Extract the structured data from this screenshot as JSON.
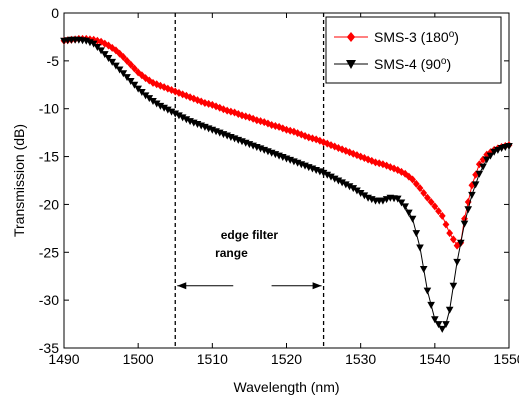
{
  "chart_data": {
    "type": "line",
    "title": "",
    "xlabel": "Wavelength (nm)",
    "ylabel": "Transmission (dB)",
    "xlim": [
      1490,
      1550
    ],
    "ylim": [
      -35,
      0
    ],
    "xticks": [
      1490,
      1500,
      1510,
      1520,
      1530,
      1540,
      1550
    ],
    "yticks": [
      0,
      -5,
      -10,
      -15,
      -20,
      -25,
      -30,
      -35
    ],
    "grid": false,
    "legend_position": "top-right",
    "series": [
      {
        "name": "SMS-3 (180",
        "name_superscript": "o",
        "name_suffix": ")",
        "color": "#ff0000",
        "marker": "diamond",
        "x": [
          1490,
          1491,
          1492,
          1493,
          1494,
          1495,
          1496,
          1497,
          1498,
          1499,
          1500,
          1501,
          1502,
          1503,
          1504,
          1505,
          1506,
          1507,
          1508,
          1509,
          1510,
          1511,
          1512,
          1513,
          1514,
          1515,
          1516,
          1517,
          1518,
          1519,
          1520,
          1521,
          1522,
          1523,
          1524,
          1525,
          1526,
          1527,
          1528,
          1529,
          1530,
          1531,
          1532,
          1533,
          1534,
          1535,
          1536,
          1537,
          1538,
          1539,
          1540,
          1541,
          1542,
          1543,
          1543.5,
          1544,
          1545,
          1546,
          1547,
          1548,
          1549,
          1550
        ],
        "y": [
          -2.9,
          -2.8,
          -2.7,
          -2.7,
          -2.8,
          -3.0,
          -3.4,
          -3.9,
          -4.6,
          -5.4,
          -6.2,
          -6.8,
          -7.3,
          -7.6,
          -7.9,
          -8.2,
          -8.5,
          -8.8,
          -9.1,
          -9.4,
          -9.6,
          -9.9,
          -10.2,
          -10.4,
          -10.7,
          -10.9,
          -11.2,
          -11.4,
          -11.7,
          -11.9,
          -12.2,
          -12.4,
          -12.7,
          -13.0,
          -13.2,
          -13.5,
          -13.8,
          -14.1,
          -14.4,
          -14.7,
          -15.0,
          -15.3,
          -15.6,
          -15.8,
          -16.1,
          -16.4,
          -16.8,
          -17.4,
          -18.3,
          -19.3,
          -20.2,
          -21.2,
          -23.0,
          -24.3,
          -24.0,
          -21.5,
          -18.0,
          -15.8,
          -14.8,
          -14.3,
          -14.0,
          -13.8
        ]
      },
      {
        "name": "SMS-4 (90",
        "name_superscript": "o",
        "name_suffix": ")",
        "color": "#000000",
        "marker": "triangle-down",
        "x": [
          1490,
          1491,
          1492,
          1493,
          1494,
          1495,
          1496,
          1497,
          1498,
          1499,
          1500,
          1501,
          1502,
          1503,
          1504,
          1505,
          1506,
          1507,
          1508,
          1509,
          1510,
          1511,
          1512,
          1513,
          1514,
          1515,
          1516,
          1517,
          1518,
          1519,
          1520,
          1521,
          1522,
          1523,
          1524,
          1525,
          1526,
          1527,
          1528,
          1529,
          1530,
          1531,
          1532,
          1533,
          1534,
          1535,
          1536,
          1537,
          1538,
          1539,
          1540,
          1541,
          1541.5,
          1542,
          1543,
          1544,
          1545,
          1546,
          1547,
          1548,
          1549,
          1550
        ],
        "y": [
          -2.9,
          -2.8,
          -2.8,
          -2.9,
          -3.2,
          -3.9,
          -4.7,
          -5.5,
          -6.3,
          -7.1,
          -7.9,
          -8.6,
          -9.2,
          -9.7,
          -10.1,
          -10.5,
          -10.9,
          -11.3,
          -11.6,
          -11.9,
          -12.2,
          -12.5,
          -12.8,
          -13.1,
          -13.4,
          -13.7,
          -14.0,
          -14.3,
          -14.6,
          -14.9,
          -15.2,
          -15.5,
          -15.8,
          -16.1,
          -16.4,
          -16.7,
          -17.1,
          -17.5,
          -17.9,
          -18.3,
          -18.8,
          -19.3,
          -19.6,
          -19.6,
          -19.3,
          -19.4,
          -20.2,
          -21.5,
          -24.5,
          -29.0,
          -32.0,
          -33.0,
          -32.5,
          -31.0,
          -26.0,
          -22.0,
          -19.0,
          -16.8,
          -15.3,
          -14.5,
          -14.1,
          -13.9
        ]
      }
    ],
    "annotations": {
      "vertical_lines_x": [
        1505,
        1525
      ],
      "label_lines": [
        "edge filter",
        "range"
      ],
      "arrow_y": -28.5
    }
  }
}
